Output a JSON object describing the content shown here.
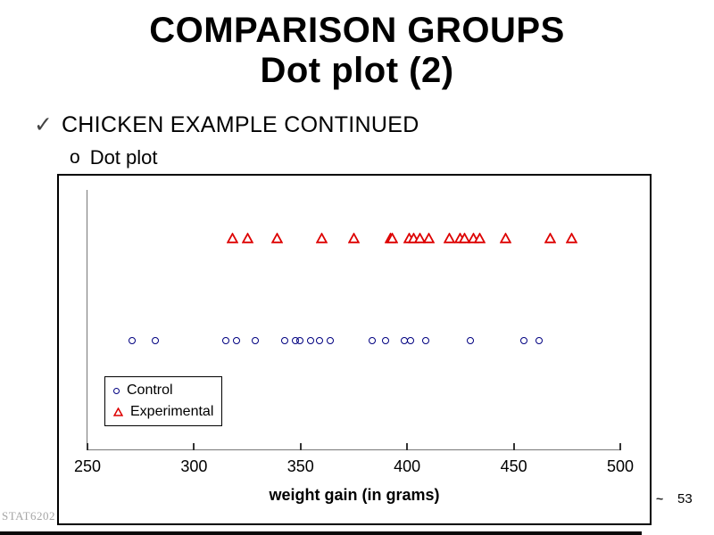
{
  "slide": {
    "title_line1": "COMPARISON GROUPS",
    "title_line2": "Dot plot (2)",
    "bullet_check": "✓",
    "bullet_text": "CHICKEN EXAMPLE CONTINUED",
    "sub_bullet_marker": "o",
    "sub_bullet_text": "Dot plot",
    "footer_left": "STAT6202",
    "footer_squiggle": "~",
    "page_number": "53"
  },
  "chart_data": {
    "type": "scatter",
    "subtype": "dot-plot",
    "title": "",
    "xlabel": "weight gain (in grams)",
    "ylabel": "",
    "xlim": [
      250,
      500
    ],
    "xticks": [
      250,
      300,
      350,
      400,
      450,
      500
    ],
    "grid": false,
    "legend_position": "inside-bottom-left",
    "series": [
      {
        "name": "Control",
        "marker": "circle",
        "color": "#000080",
        "values": [
          271,
          282,
          315,
          320,
          329,
          343,
          348,
          350,
          355,
          359,
          364,
          384,
          390,
          399,
          402,
          409,
          430,
          455,
          462
        ]
      },
      {
        "name": "Experimental",
        "marker": "triangle",
        "color": "#dd0000",
        "values": [
          318,
          325,
          339,
          360,
          375,
          392,
          393,
          401,
          403,
          406,
          410,
          420,
          425,
          427,
          431,
          434,
          446,
          467,
          477
        ]
      }
    ]
  }
}
